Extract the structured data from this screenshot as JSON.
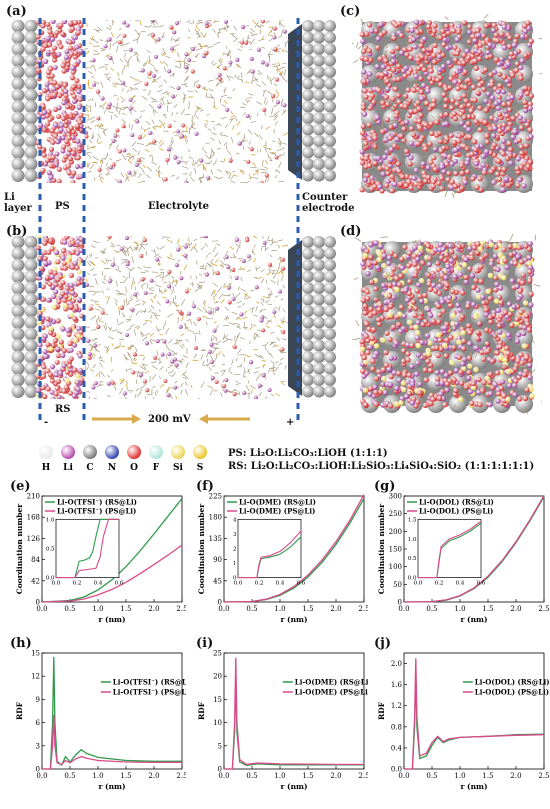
{
  "panel_labels": {
    "a": "(a)",
    "b": "(b)",
    "c": "(c)",
    "d": "(d)",
    "e": "(e)",
    "f": "(f)",
    "g": "(g)",
    "h": "(h)",
    "i": "(i)",
    "j": "(j)"
  },
  "sim_labels": {
    "li_layer": "Li\nlayer",
    "ps": "PS",
    "electrolyte": "Electrolyte",
    "counter_electrode": "Counter\nelectrode",
    "rs": "RS",
    "voltage": "200 mV",
    "minus": "-",
    "plus": "+"
  },
  "atom_legend": [
    {
      "symbol": "H",
      "color": "#e8e8e8"
    },
    {
      "symbol": "Li",
      "color": "#b23fa8"
    },
    {
      "symbol": "C",
      "color": "#6f6f6f"
    },
    {
      "symbol": "N",
      "color": "#2436a8"
    },
    {
      "symbol": "O",
      "color": "#e0201e"
    },
    {
      "symbol": "F",
      "color": "#a9e3da"
    },
    {
      "symbol": "Si",
      "color": "#e8d24c"
    },
    {
      "symbol": "S",
      "color": "#e6c21a"
    }
  ],
  "composition": {
    "ps": "PS: Li₂O:Li₂CO₃:LiOH (1:1:1)",
    "rs": "RS: Li₂O:Li₂CO₃:LiOH:Li₂SiO₃:Li₄SiO₄:SiO₂ (1:1:1:1:1:1)"
  },
  "colors": {
    "rs": "#2e9a4a",
    "ps": "#d94b8c"
  },
  "chart_data": [
    {
      "id": "e",
      "type": "line",
      "xlabel": "r (nm)",
      "ylabel": "Coordination number",
      "xlim": [
        0,
        2.5
      ],
      "ylim": [
        0,
        210
      ],
      "xticks": [
        "0.0",
        "0.5",
        "1.0",
        "1.5",
        "2.0",
        "2.5"
      ],
      "yticks": [
        "0",
        "42",
        "84",
        "126",
        "168",
        "210"
      ],
      "series": [
        {
          "name": "Li-O(TFSI⁻) (RS@Li)",
          "x": [
            0,
            0.5,
            0.75,
            1.0,
            1.25,
            1.5,
            1.75,
            2.0,
            2.25,
            2.5
          ],
          "values": [
            0,
            3,
            10,
            24,
            44,
            70,
            101,
            135,
            170,
            205
          ]
        },
        {
          "name": "Li-O(TFSI⁻) (PS@Li)",
          "x": [
            0,
            0.5,
            0.75,
            1.0,
            1.25,
            1.5,
            1.75,
            2.0,
            2.25,
            2.5
          ],
          "values": [
            0,
            2,
            6,
            14,
            25,
            39,
            56,
            74,
            93,
            113
          ]
        }
      ],
      "inset": {
        "xlim": [
          0,
          0.6
        ],
        "ylim": [
          0,
          1.0
        ],
        "xticks": [
          "0.0",
          "0.2",
          "0.4",
          "0.6"
        ],
        "yticks": [
          "0.0",
          "0.5",
          "1.0"
        ],
        "series": [
          {
            "name": "RS@Li",
            "x": [
              0,
              0.18,
              0.22,
              0.27,
              0.32,
              0.35,
              0.38,
              0.42,
              0.6
            ],
            "values": [
              0,
              0,
              0.28,
              0.3,
              0.34,
              0.45,
              0.7,
              1.0,
              1.0
            ]
          },
          {
            "name": "PS@Li",
            "x": [
              0,
              0.18,
              0.22,
              0.3,
              0.38,
              0.42,
              0.45,
              0.5,
              0.6
            ],
            "values": [
              0,
              0,
              0.12,
              0.14,
              0.16,
              0.35,
              0.7,
              1.0,
              1.0
            ]
          }
        ]
      }
    },
    {
      "id": "f",
      "type": "line",
      "xlabel": "r (nm)",
      "ylabel": "Coordination number",
      "xlim": [
        0,
        2.5
      ],
      "ylim": [
        0,
        225
      ],
      "xticks": [
        "0.0",
        "0.5",
        "1.0",
        "1.5",
        "2.0",
        "2.5"
      ],
      "yticks": [
        "0",
        "45",
        "90",
        "135",
        "180",
        "225"
      ],
      "series": [
        {
          "name": "Li-O(DME) (RS@Li)",
          "x": [
            0,
            0.5,
            0.75,
            1.0,
            1.25,
            1.5,
            1.75,
            2.0,
            2.25,
            2.5
          ],
          "values": [
            0,
            1,
            5,
            14,
            30,
            53,
            84,
            122,
            168,
            220
          ]
        },
        {
          "name": "Li-O(DME) (PS@Li)",
          "x": [
            0,
            0.5,
            0.75,
            1.0,
            1.25,
            1.5,
            1.75,
            2.0,
            2.25,
            2.5
          ],
          "values": [
            0,
            1,
            6,
            16,
            33,
            57,
            89,
            128,
            174,
            228
          ]
        }
      ],
      "inset": {
        "xlim": [
          0,
          0.6
        ],
        "ylim": [
          0,
          4
        ],
        "xticks": [
          "0.0",
          "0.2",
          "0.4",
          "0.6"
        ],
        "yticks": [
          "0",
          "1",
          "2",
          "3",
          "4"
        ],
        "series": [
          {
            "name": "RS@Li",
            "x": [
              0,
              0.18,
              0.2,
              0.22,
              0.3,
              0.4,
              0.5,
              0.6
            ],
            "values": [
              0,
              0,
              0.8,
              1.3,
              1.4,
              1.6,
              2.1,
              2.8
            ],
            "color": "rs"
          },
          {
            "name": "PS@Li",
            "x": [
              0,
              0.18,
              0.2,
              0.22,
              0.3,
              0.4,
              0.5,
              0.6
            ],
            "values": [
              0,
              0,
              0.9,
              1.4,
              1.5,
              1.8,
              2.4,
              3.2
            ]
          }
        ]
      }
    },
    {
      "id": "g",
      "type": "line",
      "xlabel": "r (nm)",
      "ylabel": "Coordination number",
      "xlim": [
        0,
        2.5
      ],
      "ylim": [
        0,
        300
      ],
      "xticks": [
        "0.0",
        "0.5",
        "1.0",
        "1.5",
        "2.0",
        "2.5"
      ],
      "yticks": [
        "0",
        "50",
        "100",
        "150",
        "200",
        "250",
        "300"
      ],
      "series": [
        {
          "name": "Li-O(DOL) (RS@Li)",
          "x": [
            0,
            0.5,
            0.75,
            1.0,
            1.25,
            1.5,
            1.75,
            2.0,
            2.25,
            2.5
          ],
          "values": [
            0,
            1,
            5,
            17,
            38,
            70,
            114,
            168,
            230,
            298
          ]
        },
        {
          "name": "Li-O(DOL) (PS@Li)",
          "x": [
            0,
            0.5,
            0.75,
            1.0,
            1.25,
            1.5,
            1.75,
            2.0,
            2.25,
            2.5
          ],
          "values": [
            0,
            1,
            6,
            18,
            40,
            73,
            117,
            171,
            233,
            301
          ]
        }
      ],
      "inset": {
        "xlim": [
          0,
          0.6
        ],
        "ylim": [
          0,
          1.5
        ],
        "xticks": [
          "0.0",
          "0.2",
          "0.4",
          "0.6"
        ],
        "yticks": [
          "0.0",
          "0.5",
          "1.0",
          "1.5"
        ],
        "series": [
          {
            "name": "RS@Li",
            "x": [
              0,
              0.18,
              0.2,
              0.22,
              0.26,
              0.3,
              0.4,
              0.5,
              0.6
            ],
            "values": [
              0,
              0,
              0.4,
              0.75,
              0.85,
              0.95,
              1.05,
              1.2,
              1.4
            ]
          },
          {
            "name": "PS@Li",
            "x": [
              0,
              0.18,
              0.2,
              0.22,
              0.26,
              0.3,
              0.4,
              0.5,
              0.6
            ],
            "values": [
              0,
              0,
              0.45,
              0.8,
              0.9,
              1.0,
              1.1,
              1.25,
              1.45
            ]
          }
        ]
      }
    },
    {
      "id": "h",
      "type": "line",
      "xlabel": "r (nm)",
      "ylabel": "RDF",
      "xlim": [
        0,
        2.5
      ],
      "ylim": [
        0,
        15
      ],
      "xticks": [
        "0.0",
        "0.5",
        "1.0",
        "1.5",
        "2.0",
        "2.5"
      ],
      "yticks": [
        "0",
        "3",
        "6",
        "9",
        "12",
        "15"
      ],
      "series": [
        {
          "name": "Li-O(TFSI⁻) (RS@Li)",
          "x": [
            0,
            0.15,
            0.19,
            0.21,
            0.23,
            0.27,
            0.35,
            0.42,
            0.5,
            0.6,
            0.7,
            0.8,
            1.0,
            1.5,
            2.0,
            2.5
          ],
          "values": [
            0,
            0,
            6,
            14.5,
            6,
            1,
            0.5,
            1.6,
            0.9,
            1.8,
            2.5,
            2,
            1.5,
            1.1,
            1.0,
            1.0
          ]
        },
        {
          "name": "Li-O(TFSI⁻) (PS@Li)",
          "x": [
            0,
            0.15,
            0.19,
            0.21,
            0.23,
            0.27,
            0.35,
            0.42,
            0.5,
            0.6,
            0.7,
            0.8,
            1.0,
            1.5,
            2.0,
            2.5
          ],
          "values": [
            0,
            0,
            3,
            7,
            3,
            0.8,
            0.6,
            1.1,
            0.8,
            1.3,
            1.6,
            1.4,
            1.1,
            0.9,
            0.85,
            0.85
          ]
        }
      ]
    },
    {
      "id": "i",
      "type": "line",
      "xlabel": "r (nm)",
      "ylabel": "RDF",
      "xlim": [
        0,
        2.5
      ],
      "ylim": [
        0,
        25
      ],
      "xticks": [
        "0.0",
        "0.5",
        "1.0",
        "1.5",
        "2.0",
        "2.5"
      ],
      "yticks": [
        "0",
        "5",
        "10",
        "15",
        "20",
        "25"
      ],
      "series": [
        {
          "name": "Li-O(DME) (RS@Li)",
          "x": [
            0,
            0.15,
            0.19,
            0.21,
            0.23,
            0.28,
            0.4,
            0.6,
            0.8,
            1.0,
            1.5,
            2.0,
            2.5
          ],
          "values": [
            0,
            0,
            8,
            19,
            8,
            1.5,
            0.8,
            1.1,
            1.0,
            0.9,
            0.9,
            0.9,
            0.9
          ]
        },
        {
          "name": "Li-O(DME) (PS@Li)",
          "x": [
            0,
            0.15,
            0.19,
            0.21,
            0.23,
            0.28,
            0.4,
            0.6,
            0.8,
            1.0,
            1.5,
            2.0,
            2.5
          ],
          "values": [
            0,
            0,
            10,
            24,
            10,
            2,
            1.0,
            1.3,
            1.2,
            1.1,
            1.05,
            1.0,
            1.0
          ]
        }
      ]
    },
    {
      "id": "j",
      "type": "line",
      "xlabel": "r (nm)",
      "ylabel": "RDF",
      "xlim": [
        0,
        2.5
      ],
      "ylim": [
        0,
        2.2
      ],
      "xticks": [
        "0.0",
        "0.5",
        "1.0",
        "1.5",
        "2.0",
        "2.5"
      ],
      "yticks": [
        "0.0",
        "0.4",
        "0.8",
        "1.2",
        "1.6",
        "2.0"
      ],
      "series": [
        {
          "name": "Li-O(DOL) (RS@Li)",
          "x": [
            0,
            0.15,
            0.19,
            0.21,
            0.23,
            0.28,
            0.4,
            0.5,
            0.6,
            0.7,
            0.8,
            1.0,
            1.5,
            2.0,
            2.5
          ],
          "values": [
            0,
            0,
            0.8,
            1.75,
            0.8,
            0.2,
            0.25,
            0.45,
            0.6,
            0.5,
            0.55,
            0.6,
            0.62,
            0.65,
            0.66
          ]
        },
        {
          "name": "Li-O(DOL) (PS@Li)",
          "x": [
            0,
            0.15,
            0.19,
            0.21,
            0.23,
            0.28,
            0.4,
            0.5,
            0.6,
            0.7,
            0.8,
            1.0,
            1.5,
            2.0,
            2.5
          ],
          "values": [
            0,
            0,
            1.0,
            2.1,
            1.0,
            0.25,
            0.3,
            0.5,
            0.62,
            0.52,
            0.57,
            0.6,
            0.62,
            0.64,
            0.65
          ]
        }
      ]
    }
  ]
}
